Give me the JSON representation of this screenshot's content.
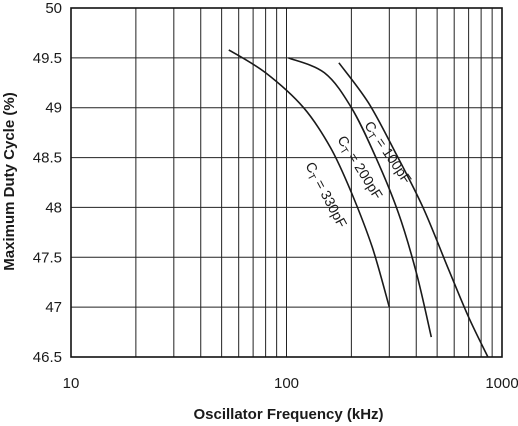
{
  "chart_data": {
    "type": "line",
    "xlabel": "Oscillator  Frequency  (kHz)",
    "ylabel": "Maximum Duty Cycle  (%)",
    "x_scale": "log",
    "xlim": [
      10,
      1000
    ],
    "ylim": [
      46.5,
      50
    ],
    "grid": true,
    "x_ticks": [
      10,
      100,
      1000
    ],
    "x_tick_labels": [
      "10",
      "100",
      "1000"
    ],
    "y_ticks": [
      46.5,
      47,
      47.5,
      48,
      48.5,
      49,
      49.5,
      50
    ],
    "y_tick_labels": [
      "46.5",
      "47",
      "47.5",
      "48",
      "48.5",
      "49",
      "49.5",
      "50"
    ],
    "series": [
      {
        "name": "CT = 330pF",
        "label_main": "C",
        "label_sub": "T",
        "label_rest": " = 330pF",
        "points": [
          [
            54,
            49.58
          ],
          [
            80,
            49.35
          ],
          [
            120,
            49.0
          ],
          [
            160,
            48.6
          ],
          [
            200,
            48.15
          ],
          [
            250,
            47.6
          ],
          [
            300,
            47.0
          ]
        ]
      },
      {
        "name": "CT = 200pF",
        "label_main": "C",
        "label_sub": "T",
        "label_rest": " = 200pF",
        "points": [
          [
            102,
            49.5
          ],
          [
            150,
            49.35
          ],
          [
            200,
            49.0
          ],
          [
            260,
            48.5
          ],
          [
            330,
            47.95
          ],
          [
            400,
            47.35
          ],
          [
            470,
            46.7
          ]
        ]
      },
      {
        "name": "CT = 100pF",
        "label_main": "C",
        "label_sub": "T",
        "label_rest": " = 100pF",
        "points": [
          [
            175,
            49.45
          ],
          [
            240,
            49.05
          ],
          [
            320,
            48.55
          ],
          [
            430,
            48.0
          ],
          [
            560,
            47.4
          ],
          [
            700,
            46.9
          ],
          [
            860,
            46.5
          ]
        ]
      }
    ]
  }
}
